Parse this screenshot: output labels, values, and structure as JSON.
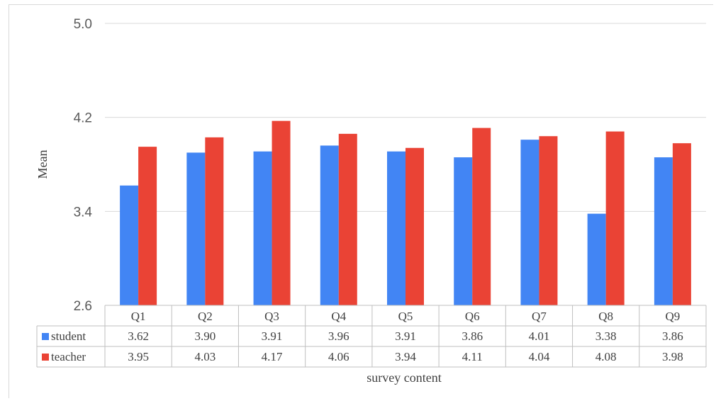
{
  "chart_data": {
    "type": "bar",
    "title": "",
    "xlabel": "survey content",
    "ylabel": "Mean",
    "ylim": [
      2.6,
      5.0
    ],
    "yticks": [
      "2.6",
      "3.4",
      "4.2",
      "5.0"
    ],
    "grid": true,
    "legend": "table-left",
    "categories": [
      "Q1",
      "Q2",
      "Q3",
      "Q4",
      "Q5",
      "Q6",
      "Q7",
      "Q8",
      "Q9"
    ],
    "series": [
      {
        "name": "student",
        "color": "#4285f4",
        "values": [
          3.62,
          3.9,
          3.91,
          3.96,
          3.91,
          3.86,
          4.01,
          3.38,
          3.86
        ]
      },
      {
        "name": "teacher",
        "color": "#ea4335",
        "values": [
          3.95,
          4.03,
          4.17,
          4.06,
          3.94,
          4.11,
          4.04,
          4.08,
          3.98
        ]
      }
    ],
    "table": {
      "rows": [
        {
          "series": "student",
          "cells": [
            "3.62",
            "3.90",
            "3.91",
            "3.96",
            "3.91",
            "3.86",
            "4.01",
            "3.38",
            "3.86"
          ]
        },
        {
          "series": "teacher",
          "cells": [
            "3.95",
            "4.03",
            "4.17",
            "4.06",
            "3.94",
            "4.11",
            "4.04",
            "4.08",
            "3.98"
          ]
        }
      ]
    }
  }
}
